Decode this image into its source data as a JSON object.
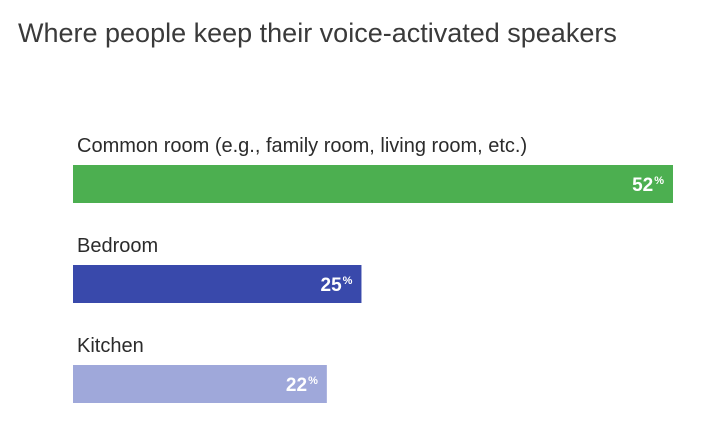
{
  "chart_data": {
    "type": "bar",
    "orientation": "horizontal",
    "title": "Where people keep their voice-activated speakers",
    "categories": [
      "Common room (e.g., family room, living room, etc.)",
      "Bedroom",
      "Kitchen"
    ],
    "values": [
      52,
      25,
      22
    ],
    "value_unit": "%",
    "bar_colors": [
      "#4caf50",
      "#3949ab",
      "#9fa8da"
    ],
    "xlim": [
      0,
      52
    ],
    "grid": false,
    "legend": "none",
    "xlabel": "",
    "ylabel": ""
  }
}
